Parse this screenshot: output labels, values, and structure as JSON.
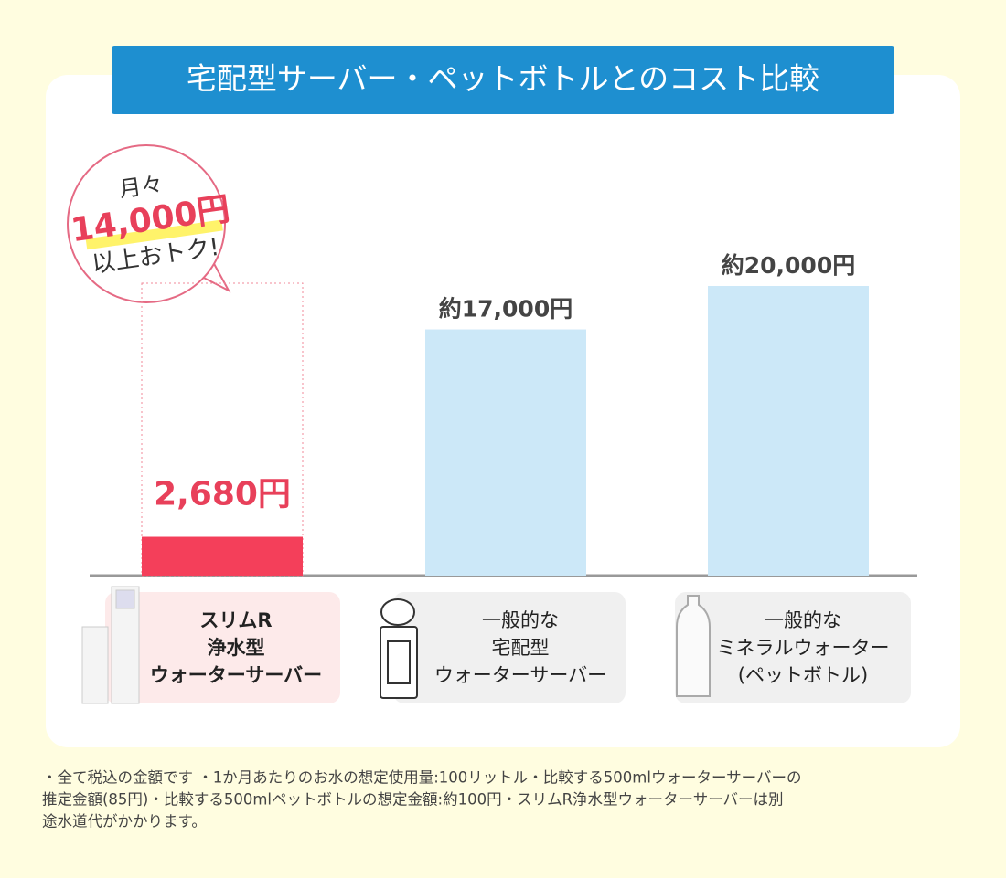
{
  "chart_data": {
    "type": "bar",
    "title": "宅配型サーバー・ペットボトルとのコスト比較",
    "categories": [
      [
        "スリムR",
        "浄水型",
        "ウォーターサーバー"
      ],
      [
        "一般的な",
        "宅配型",
        "ウォーターサーバー"
      ],
      [
        "一般的な",
        "ミネラルウォーター",
        "(ペットボトル)"
      ]
    ],
    "values": [
      2680,
      17000,
      20000
    ],
    "value_labels": [
      "2,680円",
      "約17,000円",
      "約20,000円"
    ],
    "colors": [
      "#f43f5a",
      "#cce8f8",
      "#cce8f8"
    ],
    "ylim": [
      0,
      20000
    ],
    "annotation": [
      "月々",
      "14,000円",
      "以上おトク!"
    ],
    "footnote": [
      "・全て税込の金額です ・1か月あたりのお水の想定使用量:100リットル・比較する500mlウォーターサーバーの",
      "推定金額(85円)・比較する500mlペットボトルの想定金額:約100円・スリムR浄水型ウォーターサーバーは別",
      "途水道代がかかります。"
    ]
  }
}
